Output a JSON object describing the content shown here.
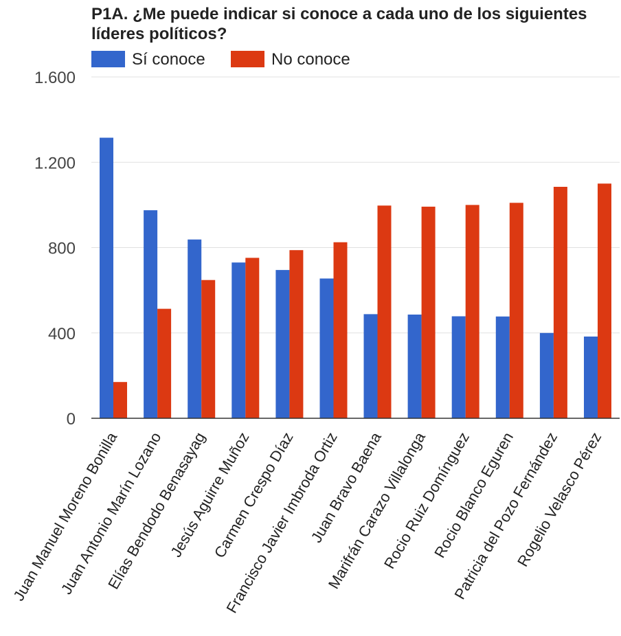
{
  "chart_data": {
    "type": "bar",
    "title_lines": [
      "P1A. ¿Me puede indicar si conoce a cada uno de los siguientes",
      "líderes políticos?"
    ],
    "categories": [
      "Juan Manuel Moreno Bonilla",
      "Juan Antonio Marín Lozano",
      "Elías Bendodo Benasayag",
      "Jesús Aguirre Muñoz",
      "Carmen Crespo Díaz",
      "Francisco Javier Imbroda Ortiz",
      "Juan Bravo Baena",
      "Marifrán Carazo Villalonga",
      "Rocio Ruiz Domínguez",
      "Rocio Blanco Eguren",
      "Patricia del Pozo Fernández",
      "Rogelio Velasco Pérez"
    ],
    "series": [
      {
        "name": "Sí conoce",
        "color": "#3366cc",
        "values": [
          1315,
          975,
          838,
          730,
          695,
          655,
          488,
          486,
          478,
          477,
          400,
          383
        ]
      },
      {
        "name": "No conoce",
        "color": "#dc3912",
        "values": [
          170,
          513,
          648,
          752,
          788,
          825,
          997,
          992,
          1000,
          1010,
          1085,
          1100
        ]
      }
    ],
    "ylim": [
      0,
      1600
    ],
    "yticks": [
      0,
      400,
      800,
      1200,
      1600
    ],
    "ytick_labels": [
      "0",
      "400",
      "800",
      "1.200",
      "1.600"
    ],
    "grid": true,
    "legend": "top-left"
  }
}
